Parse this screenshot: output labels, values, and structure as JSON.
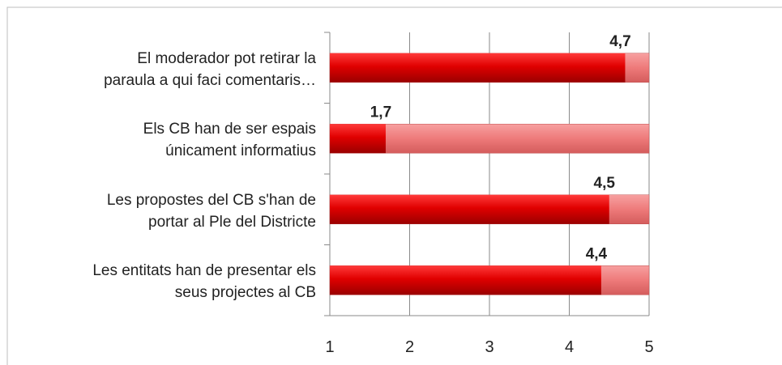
{
  "chart_data": {
    "type": "bar",
    "orientation": "horizontal",
    "categories": [
      "El moderador pot retirar la\nparaula a qui faci comentaris…",
      "Els CB han de ser espais\núnicament informatius",
      "Les propostes del CB s'han de\nportar al Ple del Districte",
      "Les entitats han de presentar els\nseus projectes al CB"
    ],
    "values": [
      4.7,
      1.7,
      4.5,
      4.4
    ],
    "value_labels": [
      "4,7",
      "1,7",
      "4,5",
      "4,4"
    ],
    "color": "#d40000",
    "track_color": "#ee7070",
    "xlim": [
      1,
      5
    ],
    "xticks": [
      1,
      2,
      3,
      4,
      5
    ],
    "grid": true
  }
}
